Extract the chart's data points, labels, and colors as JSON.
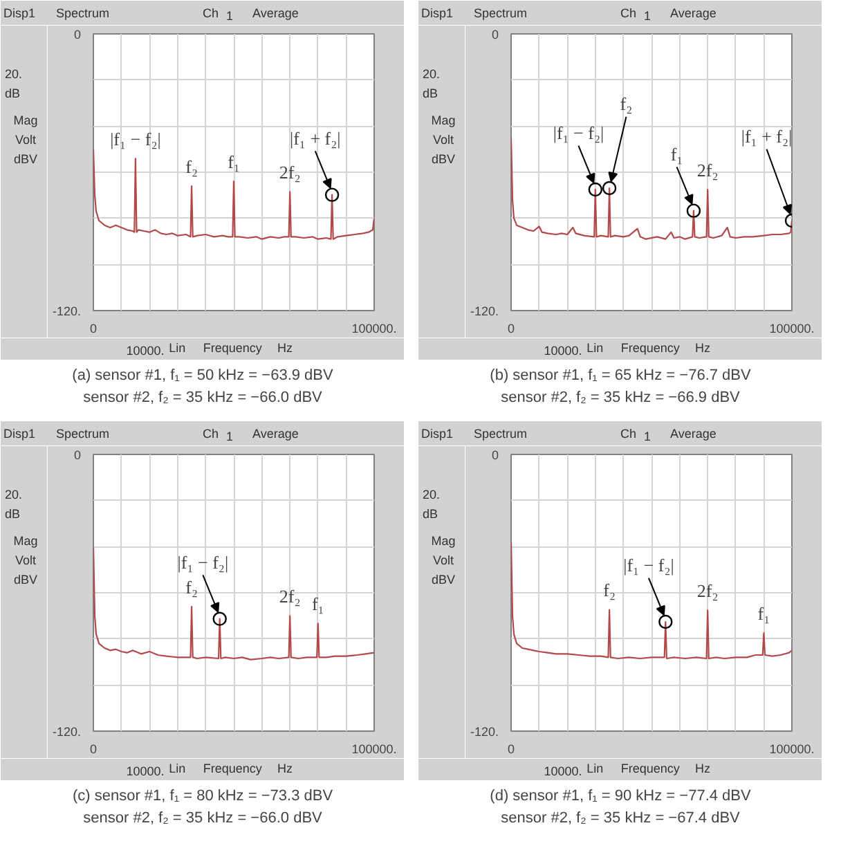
{
  "chart_data": [
    {
      "type": "line",
      "title": "(a) sensor #1, f₁ = 50 kHz = −63.9 dBV",
      "subtitle": "sensor #2, f₂ = 35 kHz = −66.0 dBV",
      "xlabel": "Frequency",
      "annotations": [
        "Disp1",
        "Spectrum",
        "Ch",
        "1",
        "Average",
        "20.",
        "dB",
        "Mag",
        "Volt",
        "dBV",
        "10000.",
        "Lin",
        "Hz",
        {
          "text": "|f₁ − f₂|",
          "x": 15000,
          "y": -54.1
        },
        {
          "text": "f₂",
          "x": 35000,
          "y": -66.0
        },
        {
          "text": "f₁",
          "x": 50000,
          "y": -63.9
        },
        {
          "text": "2f₂",
          "x": 70000,
          "y": -68.5
        },
        {
          "text": "|f₁ + f₂|",
          "x": 85000,
          "y": -69.8
        }
      ],
      "xlim": [
        0,
        100000
      ],
      "xticks": [
        {
          "value": 0,
          "label": "0"
        },
        {
          "value": 10000,
          "label": null
        },
        {
          "value": 20000,
          "label": null
        },
        {
          "value": 30000,
          "label": null
        },
        {
          "value": 40000,
          "label": null
        },
        {
          "value": 50000,
          "label": null
        },
        {
          "value": 60000,
          "label": null
        },
        {
          "value": 70000,
          "label": null
        },
        {
          "value": 80000,
          "label": null
        },
        {
          "value": 90000,
          "label": null
        },
        {
          "value": 100000,
          "label": "100000."
        }
      ],
      "ylim": [
        -120,
        0
      ],
      "yticks": [
        {
          "value": -120,
          "label": "-120."
        },
        {
          "value": -100,
          "label": null
        },
        {
          "value": -80,
          "label": null
        },
        {
          "value": -60,
          "label": null
        },
        {
          "value": -40,
          "label": null
        },
        {
          "value": -20,
          "label": null
        },
        {
          "value": 0,
          "label": "0"
        }
      ],
      "grid": true,
      "series": [
        {
          "color": "#b34848",
          "x": [
            0,
            500,
            1000,
            2000,
            4000,
            6000,
            8000,
            10000,
            12000,
            14000,
            14600,
            15000,
            15400,
            16000,
            18000,
            20000,
            22000,
            24000,
            26000,
            28000,
            30000,
            33000,
            34600,
            35000,
            35400,
            37000,
            40000,
            43000,
            46000,
            48000,
            49600,
            50000,
            50400,
            52000,
            55000,
            58000,
            60000,
            63000,
            66000,
            68000,
            69600,
            70000,
            70400,
            72000,
            75000,
            78000,
            80000,
            83000,
            84600,
            85000,
            85400,
            87000,
            90000,
            93000,
            96000,
            98000,
            99500,
            100000
          ],
          "values": [
            -50,
            -70,
            -77,
            -81,
            -83,
            -84,
            -83,
            -84,
            -85,
            -85.5,
            -86,
            -54.1,
            -86,
            -85,
            -85.5,
            -86,
            -85,
            -86.5,
            -87,
            -86.5,
            -87.5,
            -87,
            -88,
            -66.0,
            -88,
            -87.5,
            -87,
            -88,
            -87.5,
            -88,
            -88,
            -63.9,
            -88,
            -88,
            -88.5,
            -88,
            -89,
            -88,
            -88.5,
            -88,
            -88,
            -68.5,
            -88,
            -88,
            -88.5,
            -88,
            -89,
            -88.5,
            -89,
            -69.8,
            -89,
            -88,
            -87.5,
            -87,
            -86.5,
            -86,
            -85,
            -80
          ]
        },
        {
          "type": "scatter",
          "marker": "circle",
          "color": "#000000",
          "x": [
            85000
          ],
          "values": [
            -69.8
          ]
        }
      ]
    },
    {
      "type": "line",
      "title": "(b) sensor #1, f₁ = 65 kHz = −76.7 dBV",
      "subtitle": "sensor #2, f₂ = 35 kHz = −66.9 dBV",
      "xlabel": "Frequency",
      "annotations": [
        "Disp1",
        "Spectrum",
        "Ch",
        "1",
        "Average",
        "20.",
        "dB",
        "Mag",
        "Volt",
        "dBV",
        "10000.",
        "Lin",
        "Hz",
        {
          "text": "|f₁ − f₂|",
          "x": 30000,
          "y": -67.5
        },
        {
          "text": "f₂",
          "x": 35000,
          "y": -66.9
        },
        {
          "text": "f₁",
          "x": 65000,
          "y": -76.7
        },
        {
          "text": "2f₂",
          "x": 70000,
          "y": -67.5
        },
        {
          "text": "|f₁ + f₂|",
          "x": 100000,
          "y": -81
        }
      ],
      "xlim": [
        0,
        100000
      ],
      "xticks": [
        {
          "value": 0,
          "label": "0"
        },
        {
          "value": 10000,
          "label": null
        },
        {
          "value": 20000,
          "label": null
        },
        {
          "value": 30000,
          "label": null
        },
        {
          "value": 40000,
          "label": null
        },
        {
          "value": 50000,
          "label": null
        },
        {
          "value": 60000,
          "label": null
        },
        {
          "value": 70000,
          "label": null
        },
        {
          "value": 80000,
          "label": null
        },
        {
          "value": 90000,
          "label": null
        },
        {
          "value": 100000,
          "label": "100000."
        }
      ],
      "ylim": [
        -120,
        0
      ],
      "yticks": [
        {
          "value": -120,
          "label": "-120."
        },
        {
          "value": -100,
          "label": null
        },
        {
          "value": -80,
          "label": null
        },
        {
          "value": -60,
          "label": null
        },
        {
          "value": -40,
          "label": null
        },
        {
          "value": -20,
          "label": null
        },
        {
          "value": 0,
          "label": "0"
        }
      ],
      "grid": true,
      "series": [
        {
          "color": "#b34848",
          "x": [
            0,
            500,
            1000,
            2000,
            4000,
            6000,
            8000,
            10000,
            11000,
            13000,
            16000,
            18000,
            20000,
            22000,
            23000,
            26000,
            29600,
            30000,
            30400,
            32000,
            34600,
            35000,
            35400,
            37000,
            40000,
            42000,
            45000,
            46000,
            48000,
            52000,
            55000,
            57000,
            58000,
            60000,
            62000,
            64600,
            65000,
            65400,
            67000,
            69600,
            70000,
            70400,
            72000,
            75000,
            77000,
            78000,
            80000,
            83000,
            86000,
            90000,
            93000,
            96000,
            99000,
            99600,
            100000
          ],
          "values": [
            -45,
            -72,
            -80,
            -83,
            -84,
            -85,
            -85.5,
            -83.5,
            -86,
            -86.5,
            -87,
            -86.5,
            -87,
            -84,
            -86.5,
            -87.5,
            -88,
            -67.5,
            -88,
            -87.5,
            -88,
            -66.9,
            -88,
            -87.5,
            -88,
            -87.5,
            -84.5,
            -88,
            -89,
            -88,
            -89,
            -86,
            -88.5,
            -88,
            -89,
            -88,
            -76.7,
            -88,
            -88.5,
            -88,
            -67.5,
            -88,
            -88.5,
            -87.5,
            -84,
            -88,
            -88.5,
            -88,
            -88,
            -87.5,
            -87,
            -87,
            -86.5,
            -86,
            -81
          ]
        },
        {
          "type": "scatter",
          "marker": "circle",
          "color": "#000000",
          "x": [
            30000,
            35000,
            65000,
            100000
          ],
          "values": [
            -67.5,
            -66.9,
            -76.7,
            -81
          ]
        }
      ]
    },
    {
      "type": "line",
      "title": "(c) sensor #1, f₁ = 80 kHz = −73.3 dBV",
      "subtitle": "sensor #2, f₂ = 35 kHz = −66.0 dBV",
      "xlabel": "Frequency",
      "annotations": [
        "Disp1",
        "Spectrum",
        "Ch",
        "1",
        "Average",
        "20.",
        "dB",
        "Mag",
        "Volt",
        "dBV",
        "10000.",
        "Lin",
        "Hz",
        {
          "text": "f₂",
          "x": 35000,
          "y": -66.0
        },
        {
          "text": "|f₁ − f₂|",
          "x": 45000,
          "y": -71.3
        },
        {
          "text": "2f₂",
          "x": 70000,
          "y": -70.0
        },
        {
          "text": "f₁",
          "x": 80000,
          "y": -73.3
        }
      ],
      "xlim": [
        0,
        100000
      ],
      "xticks": [
        {
          "value": 0,
          "label": "0"
        },
        {
          "value": 10000,
          "label": null
        },
        {
          "value": 20000,
          "label": null
        },
        {
          "value": 30000,
          "label": null
        },
        {
          "value": 40000,
          "label": null
        },
        {
          "value": 50000,
          "label": null
        },
        {
          "value": 60000,
          "label": null
        },
        {
          "value": 70000,
          "label": null
        },
        {
          "value": 80000,
          "label": null
        },
        {
          "value": 90000,
          "label": null
        },
        {
          "value": 100000,
          "label": "100000."
        }
      ],
      "ylim": [
        -120,
        0
      ],
      "yticks": [
        {
          "value": -120,
          "label": "-120."
        },
        {
          "value": -100,
          "label": null
        },
        {
          "value": -80,
          "label": null
        },
        {
          "value": -60,
          "label": null
        },
        {
          "value": -40,
          "label": null
        },
        {
          "value": -20,
          "label": null
        },
        {
          "value": 0,
          "label": "0"
        }
      ],
      "grid": true,
      "series": [
        {
          "color": "#b34848",
          "x": [
            0,
            500,
            1000,
            2000,
            4000,
            6000,
            8000,
            10000,
            12000,
            14000,
            17000,
            20000,
            23000,
            26000,
            30000,
            34600,
            35000,
            35400,
            37000,
            40000,
            44600,
            45000,
            45400,
            47000,
            50000,
            53000,
            56000,
            60000,
            63000,
            66000,
            69600,
            70000,
            70400,
            73000,
            76000,
            79600,
            80000,
            80400,
            83000,
            86000,
            90000,
            94000,
            97000,
            100000
          ],
          "values": [
            -40,
            -70,
            -78,
            -82,
            -84,
            -85,
            -84.5,
            -85.5,
            -86,
            -85,
            -86.5,
            -85.5,
            -87,
            -87.5,
            -88,
            -88,
            -66.0,
            -88,
            -88.5,
            -88,
            -88.5,
            -71.3,
            -88.5,
            -88,
            -88.5,
            -88,
            -89,
            -88.5,
            -88,
            -88.5,
            -88,
            -70.0,
            -88,
            -88.5,
            -88,
            -88,
            -73.3,
            -88,
            -88,
            -87.5,
            -87.5,
            -87,
            -86.5,
            -86
          ]
        },
        {
          "type": "scatter",
          "marker": "circle",
          "color": "#000000",
          "x": [
            45000
          ],
          "values": [
            -71.3
          ]
        }
      ]
    },
    {
      "type": "line",
      "title": "(d) sensor #1, f₁ = 90 kHz = −77.4 dBV",
      "subtitle": "sensor #2, f₂ = 35 kHz = −67.4 dBV",
      "xlabel": "Frequency",
      "annotations": [
        "Disp1",
        "Spectrum",
        "Ch",
        "1",
        "Average",
        "20.",
        "dB",
        "Mag",
        "Volt",
        "dBV",
        "10000.",
        "Lin",
        "Hz",
        {
          "text": "f₂",
          "x": 35000,
          "y": -67.4
        },
        {
          "text": "|f₁ − f₂|",
          "x": 55000,
          "y": -72.6
        },
        {
          "text": "2f₂",
          "x": 70000,
          "y": -67.6
        },
        {
          "text": "f₁",
          "x": 90000,
          "y": -77.4
        }
      ],
      "xlim": [
        0,
        100000
      ],
      "xticks": [
        {
          "value": 0,
          "label": "0"
        },
        {
          "value": 10000,
          "label": null
        },
        {
          "value": 20000,
          "label": null
        },
        {
          "value": 30000,
          "label": null
        },
        {
          "value": 40000,
          "label": null
        },
        {
          "value": 50000,
          "label": null
        },
        {
          "value": 60000,
          "label": null
        },
        {
          "value": 70000,
          "label": null
        },
        {
          "value": 80000,
          "label": null
        },
        {
          "value": 90000,
          "label": null
        },
        {
          "value": 100000,
          "label": "100000."
        }
      ],
      "ylim": [
        -120,
        0
      ],
      "yticks": [
        {
          "value": -120,
          "label": "-120."
        },
        {
          "value": -100,
          "label": null
        },
        {
          "value": -80,
          "label": null
        },
        {
          "value": -60,
          "label": null
        },
        {
          "value": -40,
          "label": null
        },
        {
          "value": -20,
          "label": null
        },
        {
          "value": 0,
          "label": "0"
        }
      ],
      "grid": true,
      "series": [
        {
          "color": "#b34848",
          "x": [
            0,
            500,
            1000,
            2000,
            4000,
            6000,
            8000,
            10000,
            13000,
            16000,
            20000,
            24000,
            28000,
            32000,
            34600,
            35000,
            35400,
            38000,
            42000,
            46000,
            50000,
            54600,
            55000,
            55400,
            58000,
            62000,
            66000,
            69600,
            70000,
            70400,
            73000,
            76000,
            80000,
            84000,
            87000,
            89600,
            90000,
            90400,
            93000,
            96000,
            99000,
            100000
          ],
          "values": [
            -38,
            -70,
            -78,
            -82,
            -84,
            -84.5,
            -85,
            -85.5,
            -86,
            -86.5,
            -86.5,
            -87,
            -87.5,
            -87.5,
            -88,
            -67.4,
            -88,
            -88.5,
            -88,
            -88.5,
            -88,
            -88,
            -72.6,
            -88.5,
            -88,
            -88.5,
            -88,
            -88.5,
            -67.6,
            -88.5,
            -88,
            -88.5,
            -88,
            -88,
            -87,
            -87,
            -77.4,
            -87,
            -87.5,
            -87,
            -86,
            -85
          ]
        },
        {
          "type": "scatter",
          "marker": "circle",
          "color": "#000000",
          "x": [
            55000
          ],
          "values": [
            -72.6
          ]
        }
      ]
    }
  ]
}
